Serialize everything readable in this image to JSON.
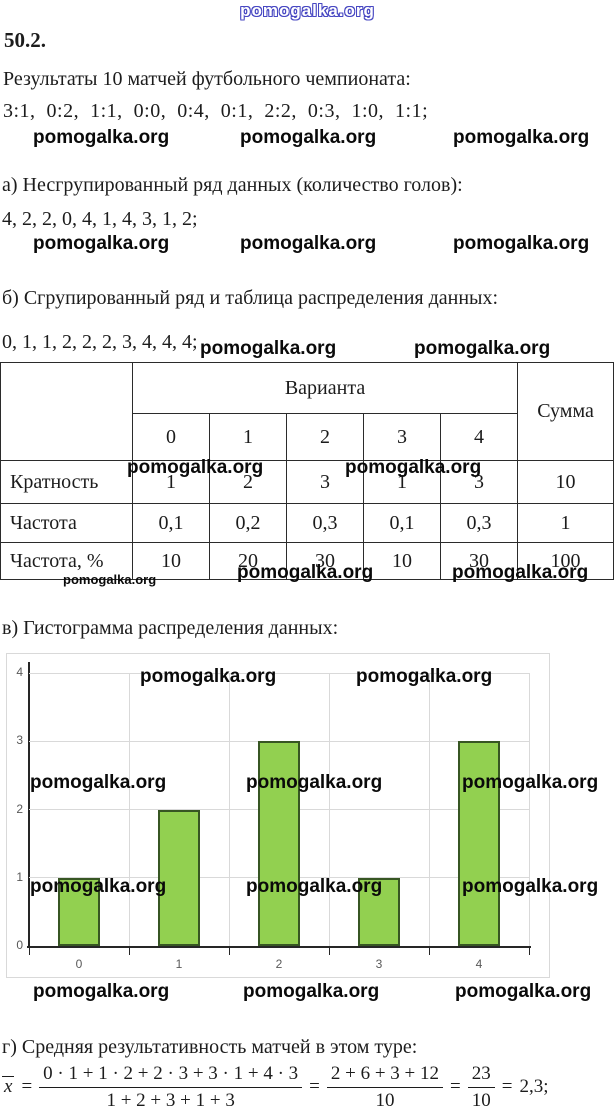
{
  "watermark": {
    "text": "pomogalka.org"
  },
  "problem": {
    "number": "50.2.",
    "intro": "Результаты 10 матчей футбольного чемпионата:",
    "results": "3:1,  0:2,  1:1,  0:0,  0:4,  0:1,  2:2,  0:3,  1:0,  1:1;"
  },
  "part_a": {
    "label": "а) Несгрупированный ряд данных (количество голов):",
    "series": "4, 2, 2, 0, 4, 1, 4, 3, 1, 2;"
  },
  "part_b": {
    "label": "б) Сгрупированный ряд и таблица распределения данных:",
    "series": "0, 1, 1, 2, 2, 2, 3, 4, 4, 4;"
  },
  "table": {
    "header": {
      "variant": "Варианта",
      "sum": "Сумма",
      "values": [
        "0",
        "1",
        "2",
        "3",
        "4"
      ]
    },
    "rows": [
      {
        "label": "Кратность",
        "values": [
          "1",
          "2",
          "3",
          "1",
          "3"
        ],
        "sum": "10"
      },
      {
        "label": "Частота",
        "values": [
          "0,1",
          "0,2",
          "0,3",
          "0,1",
          "0,3"
        ],
        "sum": "1"
      },
      {
        "label": "Частота, %",
        "values": [
          "10",
          "20",
          "30",
          "10",
          "30"
        ],
        "sum": "100"
      }
    ]
  },
  "part_v": {
    "label": "в) Гистограмма распределения данных:"
  },
  "chart_data": {
    "type": "bar",
    "categories": [
      "0",
      "1",
      "2",
      "3",
      "4"
    ],
    "values": [
      1,
      2,
      3,
      1,
      3
    ],
    "title": "",
    "xlabel": "",
    "ylabel": "",
    "ylim": [
      0,
      4
    ],
    "yticks": [
      0,
      1,
      2,
      3,
      4
    ],
    "grid": true,
    "legend": "none",
    "bar_fill": "#92d050",
    "bar_border": "#375623"
  },
  "part_g": {
    "label": "г) Средняя результативность матчей в этом туре:",
    "formula": {
      "lhs": "x",
      "eq1": "=",
      "num1": "0 · 1 + 1 · 2 + 2 · 3 + 3 · 1 + 4 · 3",
      "den1": "1 + 2 + 3 + 1 + 3",
      "eq2": "=",
      "num2": "2 + 6 + 3 + 12",
      "den2": "10",
      "eq3": "=",
      "num3": "23",
      "den3": "10",
      "eq4": "=",
      "result": "2,3;"
    }
  }
}
